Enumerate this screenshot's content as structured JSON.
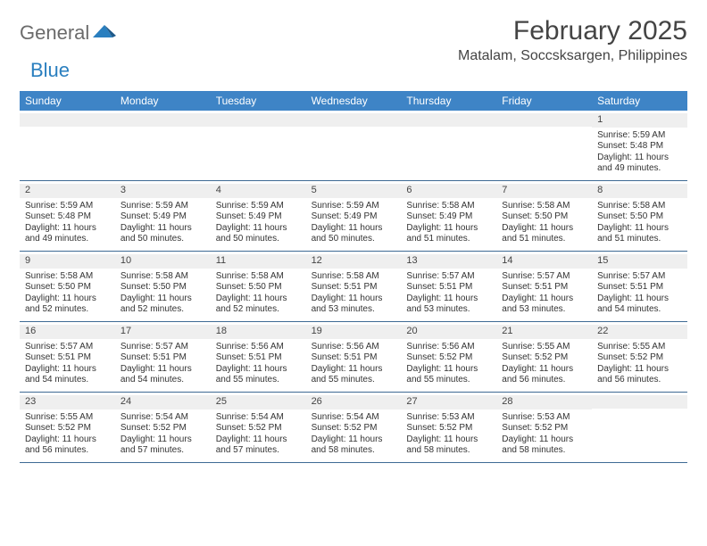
{
  "brand": {
    "t1": "General",
    "t2": "Blue",
    "icon_color": "#2a7fbf"
  },
  "title": "February 2025",
  "location": "Matalam, Soccsksargen, Philippines",
  "header_bg": "#3e84c6",
  "stripe_bg": "#efefef",
  "border_color": "#3e6a94",
  "weekdays": [
    "Sunday",
    "Monday",
    "Tuesday",
    "Wednesday",
    "Thursday",
    "Friday",
    "Saturday"
  ],
  "weeks": [
    [
      null,
      null,
      null,
      null,
      null,
      null,
      {
        "n": "1",
        "sr": "Sunrise: 5:59 AM",
        "ss": "Sunset: 5:48 PM",
        "dl": "Daylight: 11 hours and 49 minutes."
      }
    ],
    [
      {
        "n": "2",
        "sr": "Sunrise: 5:59 AM",
        "ss": "Sunset: 5:48 PM",
        "dl": "Daylight: 11 hours and 49 minutes."
      },
      {
        "n": "3",
        "sr": "Sunrise: 5:59 AM",
        "ss": "Sunset: 5:49 PM",
        "dl": "Daylight: 11 hours and 50 minutes."
      },
      {
        "n": "4",
        "sr": "Sunrise: 5:59 AM",
        "ss": "Sunset: 5:49 PM",
        "dl": "Daylight: 11 hours and 50 minutes."
      },
      {
        "n": "5",
        "sr": "Sunrise: 5:59 AM",
        "ss": "Sunset: 5:49 PM",
        "dl": "Daylight: 11 hours and 50 minutes."
      },
      {
        "n": "6",
        "sr": "Sunrise: 5:58 AM",
        "ss": "Sunset: 5:49 PM",
        "dl": "Daylight: 11 hours and 51 minutes."
      },
      {
        "n": "7",
        "sr": "Sunrise: 5:58 AM",
        "ss": "Sunset: 5:50 PM",
        "dl": "Daylight: 11 hours and 51 minutes."
      },
      {
        "n": "8",
        "sr": "Sunrise: 5:58 AM",
        "ss": "Sunset: 5:50 PM",
        "dl": "Daylight: 11 hours and 51 minutes."
      }
    ],
    [
      {
        "n": "9",
        "sr": "Sunrise: 5:58 AM",
        "ss": "Sunset: 5:50 PM",
        "dl": "Daylight: 11 hours and 52 minutes."
      },
      {
        "n": "10",
        "sr": "Sunrise: 5:58 AM",
        "ss": "Sunset: 5:50 PM",
        "dl": "Daylight: 11 hours and 52 minutes."
      },
      {
        "n": "11",
        "sr": "Sunrise: 5:58 AM",
        "ss": "Sunset: 5:50 PM",
        "dl": "Daylight: 11 hours and 52 minutes."
      },
      {
        "n": "12",
        "sr": "Sunrise: 5:58 AM",
        "ss": "Sunset: 5:51 PM",
        "dl": "Daylight: 11 hours and 53 minutes."
      },
      {
        "n": "13",
        "sr": "Sunrise: 5:57 AM",
        "ss": "Sunset: 5:51 PM",
        "dl": "Daylight: 11 hours and 53 minutes."
      },
      {
        "n": "14",
        "sr": "Sunrise: 5:57 AM",
        "ss": "Sunset: 5:51 PM",
        "dl": "Daylight: 11 hours and 53 minutes."
      },
      {
        "n": "15",
        "sr": "Sunrise: 5:57 AM",
        "ss": "Sunset: 5:51 PM",
        "dl": "Daylight: 11 hours and 54 minutes."
      }
    ],
    [
      {
        "n": "16",
        "sr": "Sunrise: 5:57 AM",
        "ss": "Sunset: 5:51 PM",
        "dl": "Daylight: 11 hours and 54 minutes."
      },
      {
        "n": "17",
        "sr": "Sunrise: 5:57 AM",
        "ss": "Sunset: 5:51 PM",
        "dl": "Daylight: 11 hours and 54 minutes."
      },
      {
        "n": "18",
        "sr": "Sunrise: 5:56 AM",
        "ss": "Sunset: 5:51 PM",
        "dl": "Daylight: 11 hours and 55 minutes."
      },
      {
        "n": "19",
        "sr": "Sunrise: 5:56 AM",
        "ss": "Sunset: 5:51 PM",
        "dl": "Daylight: 11 hours and 55 minutes."
      },
      {
        "n": "20",
        "sr": "Sunrise: 5:56 AM",
        "ss": "Sunset: 5:52 PM",
        "dl": "Daylight: 11 hours and 55 minutes."
      },
      {
        "n": "21",
        "sr": "Sunrise: 5:55 AM",
        "ss": "Sunset: 5:52 PM",
        "dl": "Daylight: 11 hours and 56 minutes."
      },
      {
        "n": "22",
        "sr": "Sunrise: 5:55 AM",
        "ss": "Sunset: 5:52 PM",
        "dl": "Daylight: 11 hours and 56 minutes."
      }
    ],
    [
      {
        "n": "23",
        "sr": "Sunrise: 5:55 AM",
        "ss": "Sunset: 5:52 PM",
        "dl": "Daylight: 11 hours and 56 minutes."
      },
      {
        "n": "24",
        "sr": "Sunrise: 5:54 AM",
        "ss": "Sunset: 5:52 PM",
        "dl": "Daylight: 11 hours and 57 minutes."
      },
      {
        "n": "25",
        "sr": "Sunrise: 5:54 AM",
        "ss": "Sunset: 5:52 PM",
        "dl": "Daylight: 11 hours and 57 minutes."
      },
      {
        "n": "26",
        "sr": "Sunrise: 5:54 AM",
        "ss": "Sunset: 5:52 PM",
        "dl": "Daylight: 11 hours and 58 minutes."
      },
      {
        "n": "27",
        "sr": "Sunrise: 5:53 AM",
        "ss": "Sunset: 5:52 PM",
        "dl": "Daylight: 11 hours and 58 minutes."
      },
      {
        "n": "28",
        "sr": "Sunrise: 5:53 AM",
        "ss": "Sunset: 5:52 PM",
        "dl": "Daylight: 11 hours and 58 minutes."
      },
      null
    ]
  ]
}
